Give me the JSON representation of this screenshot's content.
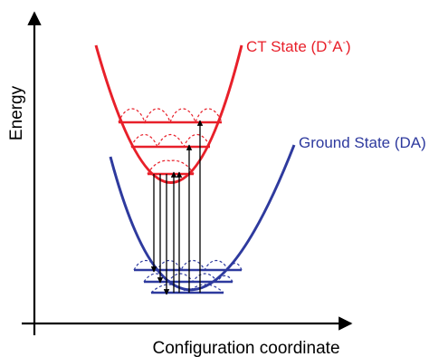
{
  "axes": {
    "x_label": "Configuration coordinate",
    "y_label": "Energy"
  },
  "states": {
    "ct": {
      "label_main": "CT State (D",
      "label_sup1": "+",
      "label_mid": "A",
      "label_sup2": "-",
      "label_end": ")",
      "color": "#e8202a"
    },
    "ground": {
      "label": "Ground State (DA)",
      "color": "#2e3a9e"
    }
  },
  "colors": {
    "axis": "#000000",
    "arrows": "#000000"
  }
}
